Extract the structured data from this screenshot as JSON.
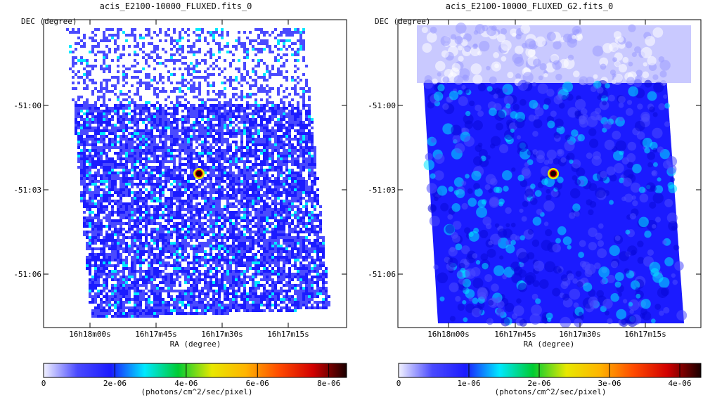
{
  "colors": {
    "colormap": [
      "#f2f2ff",
      "#4a4aff",
      "#1b1bff",
      "#00e8ff",
      "#00cc33",
      "#e8e800",
      "#ffb400",
      "#ff4a00",
      "#d20000",
      "#1a0000"
    ],
    "frame": "#000000"
  },
  "chart_data": [
    {
      "type": "heatmap",
      "title": "acis_E2100-10000_FLUXED.fits_0",
      "ylabel": "DEC (degree)",
      "xlabel": "RA (degree)",
      "y_ticks": [
        "-51:00",
        "-51:03",
        "-51:06"
      ],
      "x_ticks": [
        "16h18m00s",
        "16h17m45s",
        "16h17m30s",
        "16h17m15s"
      ],
      "colorbar": {
        "ticks": [
          "0",
          "2e-06",
          "4e-06",
          "6e-06",
          "8e-06"
        ],
        "tick_values": [
          0,
          2e-06,
          4e-06,
          6e-06,
          8e-06
        ],
        "range": [
          0,
          8.5e-06
        ],
        "label": "(photons/cm^2/sec/pixel)"
      },
      "source": {
        "peak_flux": 8.5e-06
      },
      "image_style": "noisy"
    },
    {
      "type": "heatmap",
      "title": "acis_E2100-10000_FLUXED_G2.fits_0",
      "ylabel": "DEC (degree)",
      "xlabel": "RA (degree)",
      "y_ticks": [
        "-51:00",
        "-51:03",
        "-51:06"
      ],
      "x_ticks": [
        "16h18m00s",
        "16h17m45s",
        "16h17m30s",
        "16h17m15s"
      ],
      "colorbar": {
        "ticks": [
          "0",
          "1e-06",
          "2e-06",
          "3e-06",
          "4e-06"
        ],
        "tick_values": [
          0,
          1e-06,
          2e-06,
          3e-06,
          4e-06
        ],
        "range": [
          0,
          4.3e-06
        ],
        "label": "(photons/cm^2/sec/pixel)"
      },
      "source": {
        "peak_flux": 4.3e-06
      },
      "image_style": "smoothed"
    }
  ]
}
